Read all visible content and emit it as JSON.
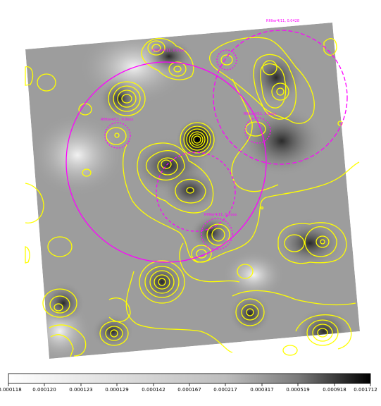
{
  "image": {
    "colors": {
      "contour": "#ffff00",
      "region": "#ff00ff",
      "background": "#ffffff"
    },
    "region_labels": [
      "Rfilter4/11, 0.0428",
      "Rfilter4/11, 0.0xxx",
      "Rfilter4/11, 0.0xxx",
      "Rfilter4/11, 0.0xxx",
      "Rfilter4/11, 0.0xxx"
    ]
  },
  "colorbar": {
    "ticks": [
      "0.000118",
      "0.000120",
      "0.000123",
      "0.000129",
      "0.000142",
      "0.000167",
      "0.000217",
      "0.000317",
      "0.000519",
      "0.000918",
      "0.001712"
    ]
  }
}
